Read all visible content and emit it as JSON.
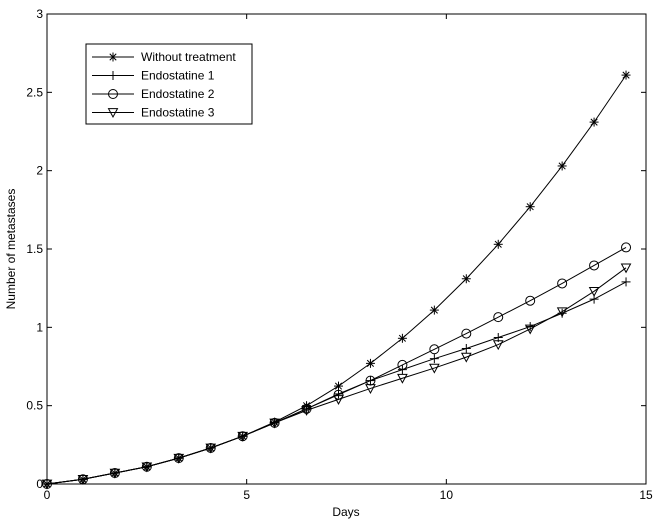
{
  "chart_data": {
    "type": "line",
    "title": "",
    "xlabel": "Days",
    "ylabel": "Number of metastases",
    "xlim": [
      0,
      15
    ],
    "ylim": [
      0,
      3
    ],
    "xticks": [
      0,
      5,
      10,
      15
    ],
    "yticks": [
      0,
      0.5,
      1,
      1.5,
      2,
      2.5,
      3
    ],
    "xtick_labels": [
      "0",
      "5",
      "10",
      "15"
    ],
    "ytick_labels": [
      "0",
      "0.5",
      "1",
      "1.5",
      "2",
      "2.5",
      "3"
    ],
    "grid": false,
    "legend_position": "top-left",
    "x": [
      0,
      0.9,
      1.7,
      2.5,
      3.3,
      4.1,
      4.9,
      5.7,
      6.5,
      7.3,
      8.1,
      8.9,
      9.7,
      10.5,
      11.3,
      12.1,
      12.9,
      13.7,
      14.5
    ],
    "series": [
      {
        "name": "Without treatment",
        "marker": "asterisk",
        "color": "#000000",
        "values": [
          0.0,
          0.03,
          0.07,
          0.11,
          0.165,
          0.23,
          0.305,
          0.395,
          0.5,
          0.625,
          0.77,
          0.93,
          1.11,
          1.31,
          1.53,
          1.77,
          2.03,
          2.31,
          2.61
        ]
      },
      {
        "name": "Endostatine 1",
        "marker": "plus",
        "color": "#000000",
        "values": [
          0.0,
          0.03,
          0.07,
          0.11,
          0.165,
          0.23,
          0.305,
          0.39,
          0.48,
          0.575,
          0.66,
          0.73,
          0.8,
          0.865,
          0.935,
          1.005,
          1.09,
          1.18,
          1.29
        ]
      },
      {
        "name": "Endostatine 2",
        "marker": "circle",
        "color": "#000000",
        "values": [
          0.0,
          0.03,
          0.07,
          0.11,
          0.165,
          0.23,
          0.305,
          0.39,
          0.48,
          0.57,
          0.66,
          0.76,
          0.86,
          0.96,
          1.065,
          1.17,
          1.28,
          1.395,
          1.51
        ]
      },
      {
        "name": "Endostatine 3",
        "marker": "triangle-down",
        "color": "#000000",
        "values": [
          0.0,
          0.03,
          0.07,
          0.11,
          0.165,
          0.23,
          0.305,
          0.39,
          0.47,
          0.54,
          0.61,
          0.675,
          0.74,
          0.81,
          0.89,
          0.99,
          1.1,
          1.23,
          1.38
        ]
      }
    ]
  }
}
